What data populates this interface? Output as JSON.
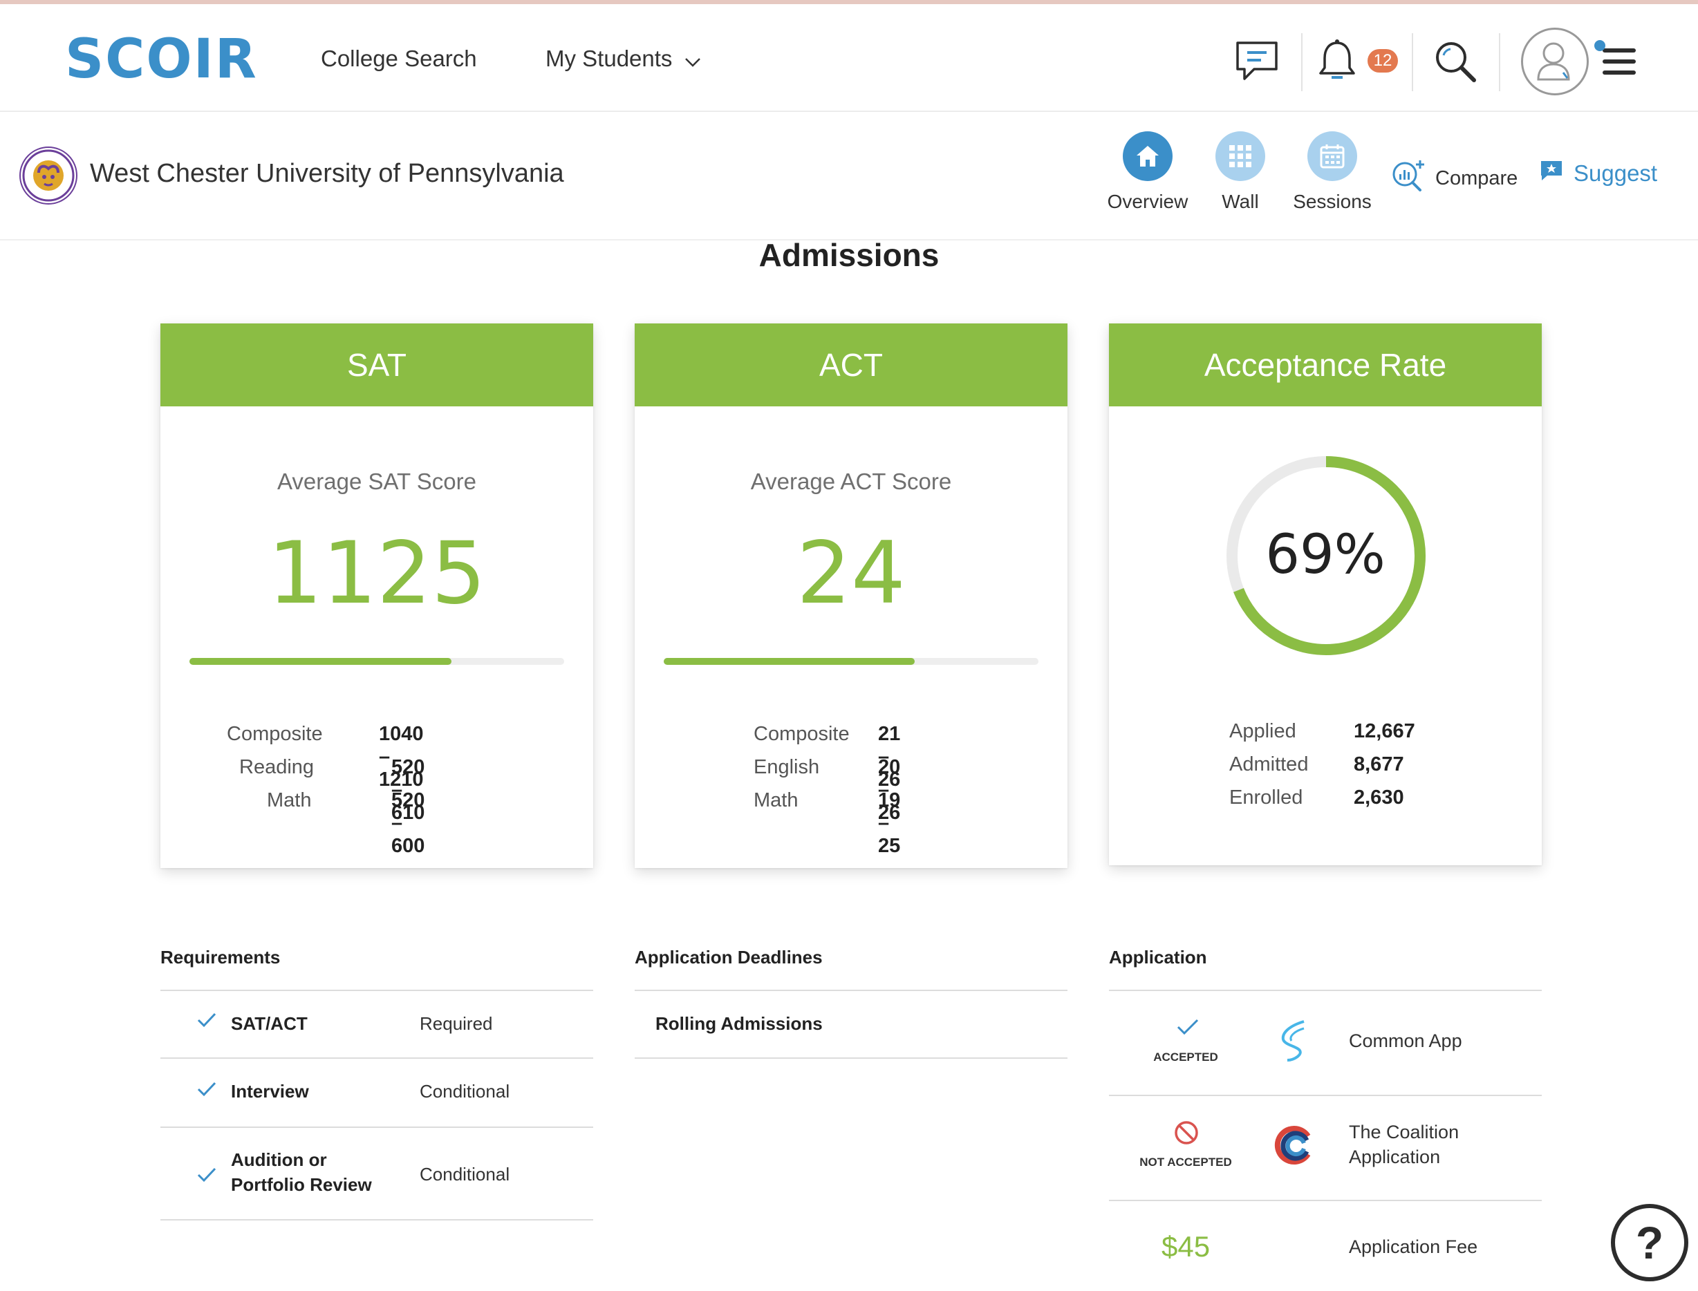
{
  "brand": {
    "logo_text": "SCOIR",
    "brand_color": "#3b8fc9",
    "accent_color": "#8bbd44"
  },
  "nav": {
    "college_search": "College Search",
    "my_students": "My Students",
    "notifications_count": "12",
    "icons": [
      "chat-icon",
      "bell-icon",
      "search-icon",
      "avatar-icon",
      "menu-icon"
    ]
  },
  "school": {
    "name": "West Chester University of Pennsylvania",
    "tabs": [
      {
        "label": "Overview",
        "icon": "home-icon",
        "active": true
      },
      {
        "label": "Wall",
        "icon": "grid-icon",
        "active": false
      },
      {
        "label": "Sessions",
        "icon": "calendar-icon",
        "active": false
      }
    ],
    "compare": "Compare",
    "suggest": "Suggest"
  },
  "admissions": {
    "title": "Admissions",
    "sat": {
      "header": "SAT",
      "subtitle": "Average SAT Score",
      "value": "1125",
      "bar_fraction": 0.7,
      "rows": [
        {
          "label": "Composite",
          "value": "1040 – 1210"
        },
        {
          "label": "Reading",
          "value": "520 – 610"
        },
        {
          "label": "Math",
          "value": "520 – 600"
        }
      ]
    },
    "act": {
      "header": "ACT",
      "subtitle": "Average ACT Score",
      "value": "24",
      "bar_fraction": 0.67,
      "rows": [
        {
          "label": "Composite",
          "value": "21 – 26"
        },
        {
          "label": "English",
          "value": "20 – 26"
        },
        {
          "label": "Math",
          "value": "19 – 25"
        }
      ]
    },
    "acceptance": {
      "header": "Acceptance Rate",
      "percent_label": "69%",
      "fraction": 0.69,
      "rows": [
        {
          "label": "Applied",
          "value": "12,667"
        },
        {
          "label": "Admitted",
          "value": "8,677"
        },
        {
          "label": "Enrolled",
          "value": "2,630"
        }
      ]
    }
  },
  "requirements": {
    "title": "Requirements",
    "items": [
      {
        "name": "SAT/ACT",
        "status": "Required"
      },
      {
        "name": "Interview",
        "status": "Conditional"
      },
      {
        "name": "Audition or Portfolio Review",
        "status": "Conditional"
      }
    ]
  },
  "deadlines": {
    "title": "Application Deadlines",
    "items": [
      "Rolling Admissions"
    ]
  },
  "application": {
    "title": "Application",
    "items": [
      {
        "status": "ACCEPTED",
        "name": "Common App",
        "icon": "common-app-logo"
      },
      {
        "status": "NOT ACCEPTED",
        "name": "The Coalition Application",
        "icon": "coalition-logo"
      }
    ],
    "fee": "$45",
    "fee_label": "Application Fee"
  },
  "help_label": "?"
}
